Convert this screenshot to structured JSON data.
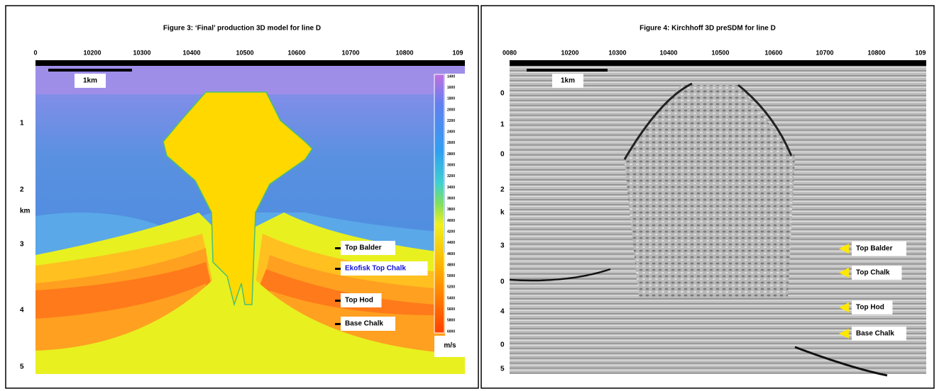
{
  "panels": [
    {
      "title": "Figure 3: ‘Final’ production 3D model for line D",
      "x_labels": [
        "0",
        "10200",
        "10300",
        "10400",
        "10500",
        "10600",
        "10700",
        "10800",
        "109"
      ],
      "y_labels": [
        "1",
        "2",
        "km",
        "3",
        "4",
        "5"
      ],
      "scale_label": "1km",
      "horizons": [
        "Top Balder",
        "Ekofisk Top Chalk",
        "Top Hod",
        "Base Chalk"
      ],
      "colorbar_labels": [
        "1400",
        "1600",
        "1800",
        "2000",
        "2200",
        "2400",
        "2600",
        "2800",
        "3000",
        "3200",
        "3400",
        "3600",
        "3800",
        "4000",
        "4200",
        "4400",
        "4600",
        "4800",
        "5000",
        "5200",
        "5400",
        "5600",
        "5800",
        "6000"
      ],
      "colorbar_unit": "m/s"
    },
    {
      "title": "Figure 4: Kirchhoff 3D preSDM for line D",
      "x_labels": [
        "0080",
        "10200",
        "10300",
        "10400",
        "10500",
        "10600",
        "10700",
        "10800",
        "109"
      ],
      "y_labels": [
        "0",
        "1",
        "0",
        "2",
        "k",
        "3",
        "0",
        "4",
        "0",
        "5"
      ],
      "scale_label": "1km",
      "horizons": [
        "Top Balder",
        "Top Chalk",
        "Top Hod",
        "Base Chalk"
      ]
    }
  ]
}
